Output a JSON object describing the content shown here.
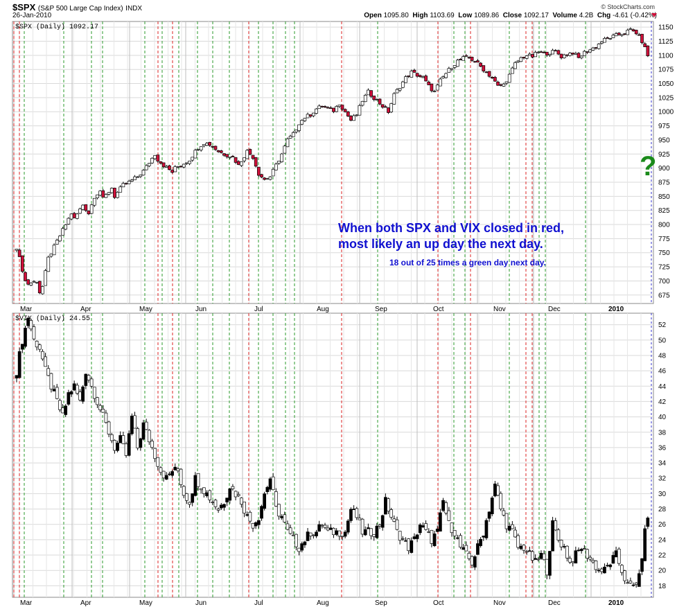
{
  "header": {
    "symbol": "$SPX",
    "name": "(S&P 500 Large Cap Index)",
    "exchange": "INDX",
    "date": "26-Jan-2010",
    "brand": "© StockCharts.com",
    "open_label": "Open",
    "open": "1095.80",
    "high_label": "High",
    "high": "1103.69",
    "low_label": "Low",
    "low": "1089.86",
    "close_label": "Close",
    "close": "1092.17",
    "volume_label": "Volume",
    "volume": "4.2B",
    "chg_label": "Chg",
    "chg": "-4.61 (-0.42%)"
  },
  "annotation": {
    "line1": "When both SPX and VIX closed in red,",
    "line2": "most likely an up day the next day.",
    "line3": "18 out of 25 times a green day next day.",
    "question": "?"
  },
  "colors": {
    "up_candle": "#ffffff",
    "down_candle": "#d0103a",
    "green_line": "#2a9a2a",
    "red_line": "#dd2222",
    "blue_line": "#3333cc",
    "text_blue": "#1010d0"
  },
  "chart_data": [
    {
      "type": "candlestick",
      "label": "$SPX (Daily) 1092.17",
      "months": [
        "Mar",
        "Apr",
        "May",
        "Jun",
        "Jul",
        "Aug",
        "Sep",
        "Oct",
        "Nov",
        "Dec",
        "2010"
      ],
      "y_ticks": [
        675,
        700,
        725,
        750,
        775,
        800,
        825,
        850,
        875,
        900,
        925,
        950,
        975,
        1000,
        1025,
        1050,
        1075,
        1100,
        1125,
        1150
      ],
      "ylim": [
        660,
        1160
      ],
      "points": [
        [
          0,
          760
        ],
        [
          3,
          700
        ],
        [
          4,
          695
        ],
        [
          7,
          700
        ],
        [
          8,
          680
        ],
        [
          9,
          690
        ],
        [
          11,
          740
        ],
        [
          13,
          760
        ],
        [
          15,
          780
        ],
        [
          17,
          800
        ],
        [
          19,
          820
        ],
        [
          20,
          810
        ],
        [
          23,
          835
        ],
        [
          25,
          820
        ],
        [
          27,
          850
        ],
        [
          29,
          860
        ],
        [
          30,
          845
        ],
        [
          33,
          865
        ],
        [
          34,
          850
        ],
        [
          37,
          870
        ],
        [
          39,
          875
        ],
        [
          42,
          885
        ],
        [
          44,
          895
        ],
        [
          46,
          910
        ],
        [
          48,
          925
        ],
        [
          49,
          915
        ],
        [
          51,
          905
        ],
        [
          54,
          893
        ],
        [
          55,
          900
        ],
        [
          57,
          905
        ],
        [
          60,
          915
        ],
        [
          63,
          937
        ],
        [
          65,
          945
        ],
        [
          67,
          942
        ],
        [
          70,
          930
        ],
        [
          72,
          925
        ],
        [
          75,
          920
        ],
        [
          77,
          905
        ],
        [
          80,
          930
        ],
        [
          82,
          920
        ],
        [
          84,
          890
        ],
        [
          86,
          880
        ],
        [
          88,
          885
        ],
        [
          90,
          905
        ],
        [
          92,
          925
        ],
        [
          94,
          950
        ],
        [
          96,
          960
        ],
        [
          98,
          980
        ],
        [
          100,
          990
        ],
        [
          102,
          995
        ],
        [
          104,
          1005
        ],
        [
          106,
          1010
        ],
        [
          108,
          1005
        ],
        [
          110,
          1002
        ],
        [
          112,
          1015
        ],
        [
          114,
          1000
        ],
        [
          116,
          985
        ],
        [
          118,
          995
        ],
        [
          120,
          1020
        ],
        [
          122,
          1035
        ],
        [
          124,
          1025
        ],
        [
          127,
          1010
        ],
        [
          129,
          1000
        ],
        [
          131,
          1030
        ],
        [
          133,
          1045
        ],
        [
          135,
          1060
        ],
        [
          137,
          1070
        ],
        [
          139,
          1065
        ],
        [
          141,
          1060
        ],
        [
          143,
          1045
        ],
        [
          145,
          1035
        ],
        [
          147,
          1055
        ],
        [
          149,
          1068
        ],
        [
          151,
          1080
        ],
        [
          153,
          1090
        ],
        [
          155,
          1095
        ],
        [
          157,
          1095
        ],
        [
          159,
          1090
        ],
        [
          161,
          1080
        ],
        [
          163,
          1070
        ],
        [
          165,
          1060
        ],
        [
          167,
          1045
        ],
        [
          169,
          1048
        ],
        [
          171,
          1065
        ],
        [
          173,
          1085
        ],
        [
          175,
          1095
        ],
        [
          177,
          1100
        ],
        [
          179,
          1098
        ],
        [
          181,
          1106
        ],
        [
          183,
          1103
        ],
        [
          185,
          1105
        ],
        [
          187,
          1107
        ],
        [
          189,
          1098
        ],
        [
          191,
          1102
        ],
        [
          193,
          1105
        ],
        [
          195,
          1095
        ],
        [
          197,
          1105
        ],
        [
          199,
          1110
        ],
        [
          201,
          1115
        ],
        [
          203,
          1125
        ],
        [
          205,
          1130
        ],
        [
          207,
          1133
        ],
        [
          209,
          1137
        ],
        [
          211,
          1140
        ],
        [
          213,
          1145
        ],
        [
          215,
          1140
        ],
        [
          217,
          1125
        ],
        [
          219,
          1100
        ],
        [
          220,
          1092
        ]
      ],
      "x_max": 220
    },
    {
      "type": "candlestick",
      "label": "$VIX (Daily) 24.55",
      "months": [
        "Mar",
        "Apr",
        "May",
        "Jun",
        "Jul",
        "Aug",
        "Sep",
        "Oct",
        "Nov",
        "Dec",
        "2010"
      ],
      "y_ticks": [
        18,
        20,
        22,
        24,
        26,
        28,
        30,
        32,
        34,
        36,
        38,
        40,
        42,
        44,
        46,
        48,
        50,
        52
      ],
      "ylim": [
        16.5,
        53.5
      ],
      "points": [
        [
          0,
          46
        ],
        [
          2,
          50
        ],
        [
          4,
          53
        ],
        [
          6,
          50
        ],
        [
          8,
          49
        ],
        [
          10,
          46
        ],
        [
          12,
          44
        ],
        [
          14,
          42
        ],
        [
          16,
          40
        ],
        [
          18,
          43
        ],
        [
          20,
          44
        ],
        [
          22,
          42
        ],
        [
          24,
          46
        ],
        [
          26,
          44
        ],
        [
          28,
          42
        ],
        [
          30,
          40
        ],
        [
          32,
          38
        ],
        [
          34,
          36
        ],
        [
          36,
          37
        ],
        [
          38,
          35
        ],
        [
          40,
          40
        ],
        [
          42,
          36
        ],
        [
          44,
          39
        ],
        [
          46,
          37
        ],
        [
          48,
          35
        ],
        [
          50,
          33
        ],
        [
          52,
          32
        ],
        [
          54,
          33
        ],
        [
          56,
          33
        ],
        [
          58,
          30
        ],
        [
          60,
          29
        ],
        [
          62,
          32
        ],
        [
          64,
          31
        ],
        [
          66,
          30
        ],
        [
          68,
          29
        ],
        [
          70,
          28
        ],
        [
          72,
          29
        ],
        [
          74,
          31
        ],
        [
          76,
          30
        ],
        [
          78,
          29
        ],
        [
          80,
          27
        ],
        [
          82,
          26
        ],
        [
          84,
          27
        ],
        [
          86,
          30
        ],
        [
          88,
          32
        ],
        [
          90,
          28
        ],
        [
          92,
          27
        ],
        [
          94,
          25
        ],
        [
          96,
          24
        ],
        [
          98,
          23
        ],
        [
          100,
          24
        ],
        [
          102,
          25
        ],
        [
          104,
          25
        ],
        [
          106,
          26
        ],
        [
          108,
          25
        ],
        [
          110,
          25
        ],
        [
          112,
          25
        ],
        [
          114,
          25
        ],
        [
          116,
          28
        ],
        [
          118,
          27
        ],
        [
          120,
          25
        ],
        [
          122,
          25
        ],
        [
          124,
          25
        ],
        [
          126,
          26
        ],
        [
          128,
          29
        ],
        [
          130,
          27
        ],
        [
          132,
          25
        ],
        [
          134,
          24
        ],
        [
          136,
          23
        ],
        [
          138,
          24
        ],
        [
          140,
          26
        ],
        [
          142,
          25
        ],
        [
          144,
          24
        ],
        [
          146,
          25
        ],
        [
          148,
          29
        ],
        [
          150,
          26
        ],
        [
          152,
          25
        ],
        [
          154,
          23
        ],
        [
          156,
          22
        ],
        [
          158,
          21
        ],
        [
          160,
          23
        ],
        [
          162,
          25
        ],
        [
          164,
          28
        ],
        [
          166,
          31
        ],
        [
          168,
          28
        ],
        [
          170,
          26
        ],
        [
          172,
          25
        ],
        [
          174,
          23
        ],
        [
          176,
          23
        ],
        [
          178,
          22
        ],
        [
          180,
          21
        ],
        [
          182,
          22
        ],
        [
          184,
          20
        ],
        [
          186,
          26
        ],
        [
          188,
          24
        ],
        [
          190,
          23
        ],
        [
          192,
          21
        ],
        [
          194,
          22
        ],
        [
          196,
          23
        ],
        [
          198,
          22
        ],
        [
          200,
          21
        ],
        [
          202,
          20
        ],
        [
          204,
          20
        ],
        [
          206,
          21
        ],
        [
          208,
          22
        ],
        [
          210,
          20
        ],
        [
          212,
          18
        ],
        [
          214,
          18
        ],
        [
          216,
          19
        ],
        [
          218,
          25
        ],
        [
          219,
          27
        ],
        [
          220,
          25
        ]
      ],
      "x_max": 220
    }
  ]
}
